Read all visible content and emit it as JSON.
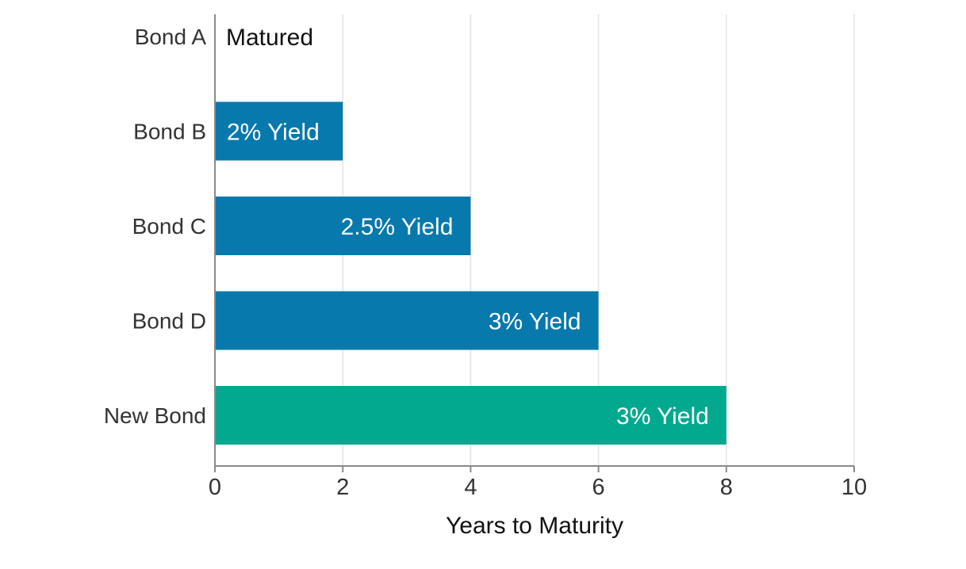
{
  "chart_data": {
    "type": "bar",
    "orientation": "horizontal",
    "categories": [
      "Bond A",
      "Bond B",
      "Bond C",
      "Bond D",
      "New Bond"
    ],
    "values": [
      0,
      2,
      4,
      6,
      8
    ],
    "bar_labels": [
      "Matured",
      "2% Yield",
      "2.5% Yield",
      "3% Yield",
      "3% Yield"
    ],
    "bar_colors": [
      "#0779ac",
      "#0779ac",
      "#0779ac",
      "#0779ac",
      "#02a98f"
    ],
    "xlabel": "Years to Maturity",
    "ylabel": "",
    "title": "",
    "xlim": [
      0,
      10
    ],
    "xticks": [
      0,
      2,
      4,
      6,
      8,
      10
    ],
    "grid": "vertical",
    "legend": "none"
  }
}
